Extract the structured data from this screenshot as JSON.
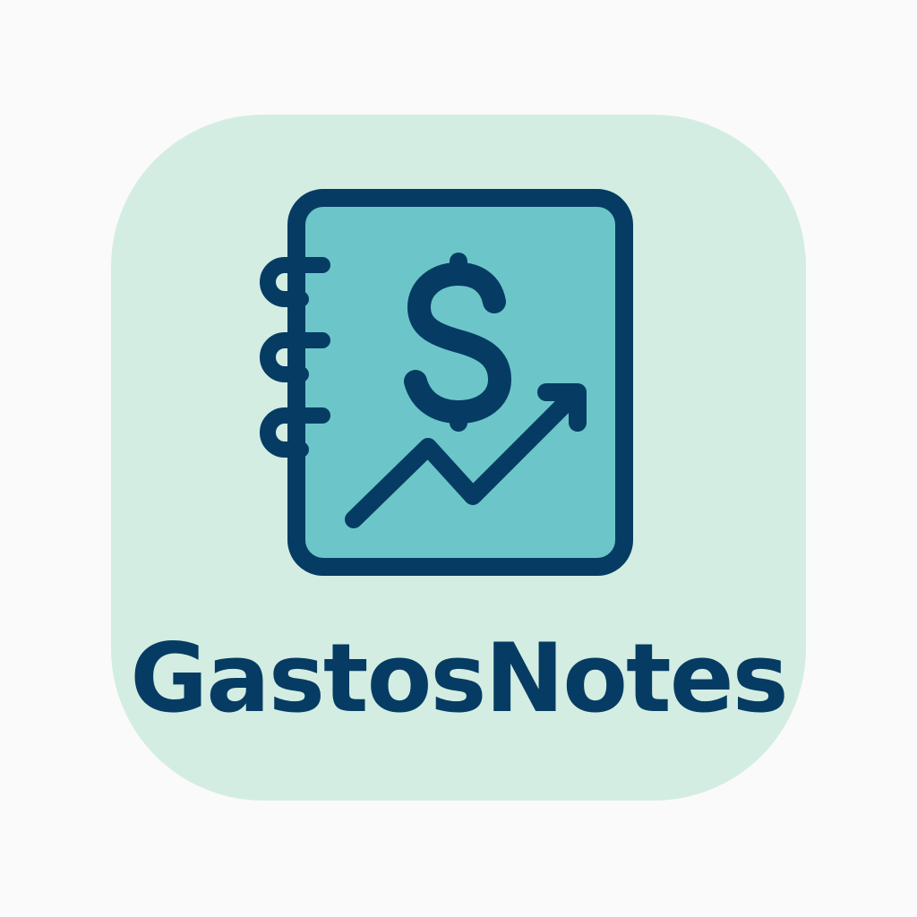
{
  "app": {
    "name": "GastosNotes"
  },
  "icon": {
    "symbol": "notebook-dollar-trend-icon",
    "dollar_glyph": "dollar-sign-icon",
    "chart_glyph": "trend-arrow-icon"
  },
  "colors": {
    "background": "#fafafa",
    "tile": "#d3ede2",
    "notebook_fill": "#6cc6c9",
    "ink": "#063c63"
  }
}
